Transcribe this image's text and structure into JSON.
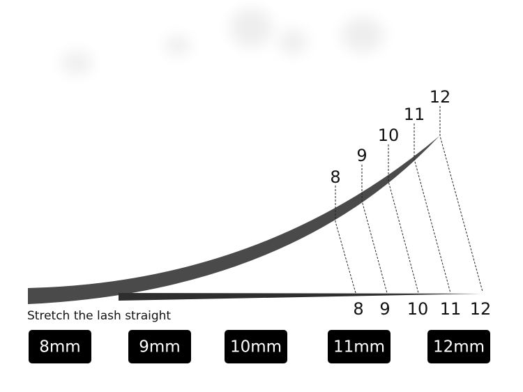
{
  "curved_labels": [
    "8",
    "9",
    "10",
    "11",
    "12"
  ],
  "straight_labels": [
    "8",
    "9",
    "10",
    "11",
    "12"
  ],
  "caption": "Stretch the lash straight",
  "lengths": [
    "8mm",
    "9mm",
    "10mm",
    "11mm",
    "12mm"
  ]
}
